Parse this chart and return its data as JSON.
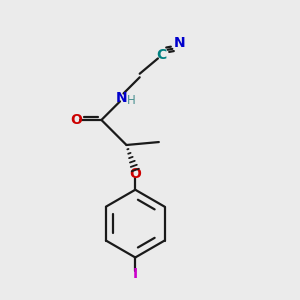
{
  "background_color": "#ebebeb",
  "bond_color": "#1a1a1a",
  "N_color": "#0000cc",
  "O_color": "#cc0000",
  "I_color": "#cc00cc",
  "C_nitrile_color": "#008080",
  "H_color": "#4a9090",
  "figsize": [
    3.0,
    3.0
  ],
  "dpi": 100,
  "xlim": [
    0,
    10
  ],
  "ylim": [
    0,
    10
  ]
}
